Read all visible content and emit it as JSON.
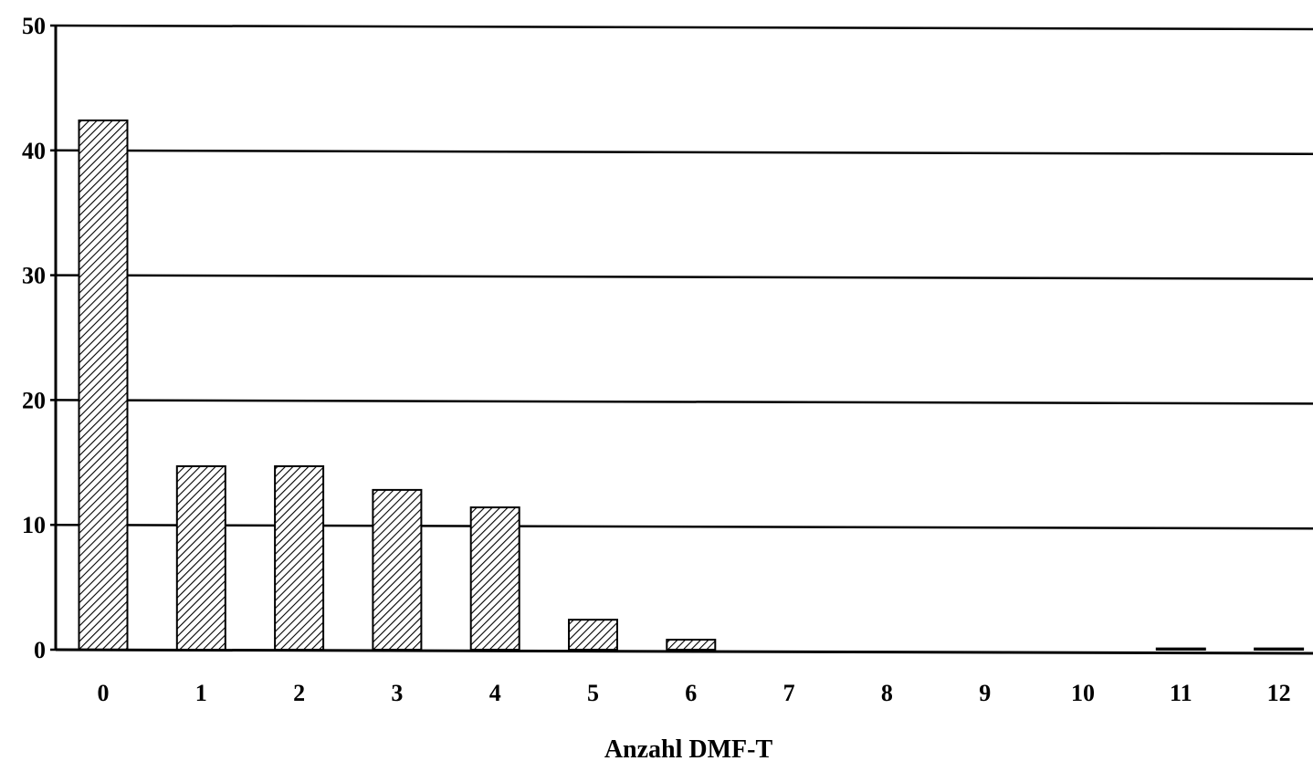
{
  "chart_data": {
    "type": "bar",
    "title": "",
    "xlabel": "Anzahl DMF-T",
    "ylabel": "",
    "categories": [
      "0",
      "1",
      "2",
      "3",
      "4",
      "5",
      "6",
      "7",
      "8",
      "9",
      "10",
      "11",
      "12"
    ],
    "values": [
      42.4,
      14.7,
      14.7,
      12.8,
      11.4,
      2.4,
      0.8,
      0,
      0,
      0,
      0,
      0.1,
      0.1
    ],
    "ylim": [
      0,
      50
    ],
    "yticks": [
      "0",
      "10",
      "20",
      "30",
      "40",
      "50"
    ],
    "grid": true,
    "legend": "none",
    "bar_pattern": "diagonal-hatch",
    "colors": {
      "bar_fill": "#ffffff",
      "hatch": "#000000",
      "axis": "#000000",
      "grid": "#000000"
    }
  }
}
